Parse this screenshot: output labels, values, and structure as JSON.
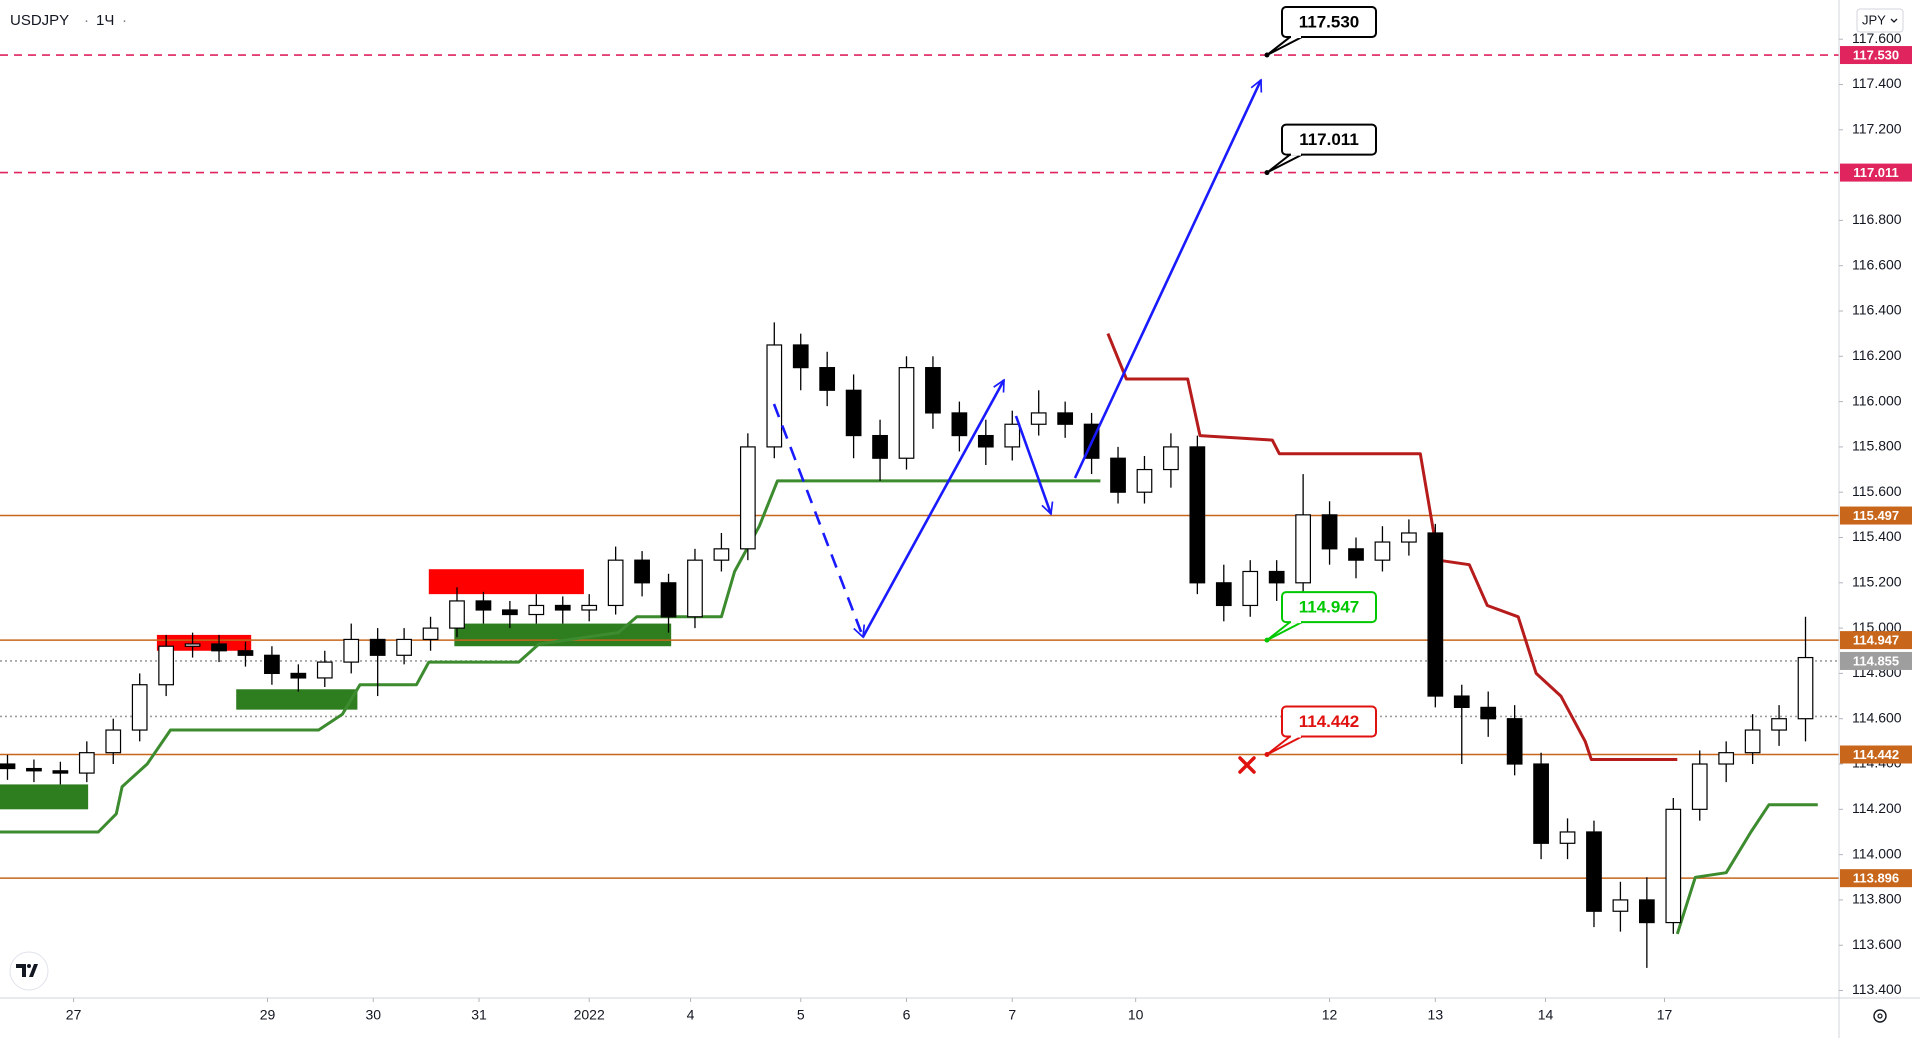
{
  "header": {
    "symbol": "USDJPY",
    "interval": "1Ч",
    "currency": "JPY"
  },
  "chart_data": {
    "type": "candlestick",
    "up_color": "#ffffff",
    "down_color": "#000000",
    "outline_color": "#000000",
    "x": [
      -15,
      -9,
      -3,
      3,
      9,
      15,
      21,
      27,
      33,
      39,
      45,
      51,
      57,
      63,
      69,
      75,
      81,
      87,
      93,
      99,
      105,
      111,
      117,
      123,
      129,
      135,
      141,
      147,
      153,
      159,
      165,
      171,
      177,
      183,
      189,
      195,
      201,
      207,
      213,
      219,
      225,
      231,
      237,
      243,
      249,
      255,
      261,
      267,
      273,
      279,
      285,
      291,
      297,
      303,
      309,
      315,
      321,
      327,
      333,
      339,
      345,
      351,
      357,
      363,
      369,
      375,
      381,
      387,
      393
    ],
    "open": [
      114.4,
      114.38,
      114.37,
      114.36,
      114.45,
      114.55,
      114.75,
      114.92,
      114.93,
      114.9,
      114.88,
      114.8,
      114.78,
      114.85,
      114.95,
      114.88,
      114.95,
      115.0,
      115.12,
      115.08,
      115.06,
      115.1,
      115.08,
      115.1,
      115.3,
      115.2,
      115.05,
      115.3,
      115.35,
      115.8,
      116.25,
      116.15,
      116.05,
      115.85,
      115.75,
      116.15,
      115.95,
      115.85,
      115.8,
      115.9,
      115.95,
      115.9,
      115.75,
      115.6,
      115.7,
      115.8,
      115.2,
      115.1,
      115.25,
      115.2,
      115.5,
      115.35,
      115.3,
      115.38,
      115.42,
      114.7,
      114.65,
      114.6,
      114.4,
      114.05,
      114.1,
      113.75,
      113.8,
      113.7,
      114.2,
      114.4,
      114.45,
      114.55,
      114.6
    ],
    "high": [
      114.44,
      114.42,
      114.41,
      114.5,
      114.6,
      114.8,
      114.97,
      114.98,
      114.97,
      114.94,
      114.92,
      114.84,
      114.9,
      115.02,
      115.0,
      115.0,
      115.05,
      115.18,
      115.16,
      115.12,
      115.15,
      115.14,
      115.15,
      115.36,
      115.34,
      115.24,
      115.35,
      115.42,
      115.86,
      116.35,
      116.3,
      116.22,
      116.12,
      115.92,
      116.2,
      116.2,
      116.0,
      115.92,
      115.96,
      116.05,
      116.0,
      115.95,
      115.8,
      115.76,
      115.86,
      115.85,
      115.28,
      115.3,
      115.3,
      115.68,
      115.56,
      115.4,
      115.45,
      115.48,
      115.46,
      114.75,
      114.72,
      114.66,
      114.45,
      114.16,
      114.15,
      113.88,
      113.9,
      114.25,
      114.46,
      114.5,
      114.62,
      114.66,
      115.05
    ],
    "low": [
      114.33,
      114.32,
      114.31,
      114.32,
      114.4,
      114.5,
      114.7,
      114.87,
      114.85,
      114.83,
      114.75,
      114.72,
      114.74,
      114.8,
      114.7,
      114.84,
      114.9,
      114.96,
      115.02,
      115.0,
      115.02,
      115.02,
      115.03,
      115.06,
      115.14,
      114.98,
      115.0,
      115.25,
      115.3,
      115.75,
      116.05,
      115.98,
      115.75,
      115.65,
      115.7,
      115.88,
      115.78,
      115.72,
      115.74,
      115.85,
      115.84,
      115.68,
      115.55,
      115.55,
      115.62,
      115.15,
      115.03,
      115.05,
      115.12,
      115.15,
      115.28,
      115.22,
      115.25,
      115.32,
      114.65,
      114.4,
      114.52,
      114.35,
      113.98,
      113.98,
      113.68,
      113.66,
      113.5,
      113.65,
      114.15,
      114.32,
      114.4,
      114.48,
      114.5
    ],
    "close": [
      114.38,
      114.37,
      114.36,
      114.45,
      114.55,
      114.75,
      114.92,
      114.93,
      114.9,
      114.88,
      114.8,
      114.78,
      114.85,
      114.95,
      114.88,
      114.95,
      115.0,
      115.12,
      115.08,
      115.06,
      115.1,
      115.08,
      115.1,
      115.3,
      115.2,
      115.05,
      115.3,
      115.35,
      115.8,
      116.25,
      116.15,
      116.05,
      115.85,
      115.75,
      116.15,
      115.95,
      115.85,
      115.8,
      115.9,
      115.95,
      115.9,
      115.75,
      115.6,
      115.7,
      115.8,
      115.2,
      115.1,
      115.25,
      115.2,
      115.5,
      115.35,
      115.3,
      115.38,
      115.42,
      114.7,
      114.65,
      114.6,
      114.4,
      114.05,
      114.1,
      113.75,
      113.8,
      113.7,
      114.2,
      114.4,
      114.45,
      114.55,
      114.6,
      114.87
    ],
    "xlim": [
      -16.7,
      400.6
    ],
    "xticks": [
      {
        "value": 0,
        "label": "27"
      },
      {
        "value": 44,
        "label": "29"
      },
      {
        "value": 68,
        "label": "30"
      },
      {
        "value": 92,
        "label": "31"
      },
      {
        "value": 117,
        "label": "2022"
      },
      {
        "value": 140,
        "label": "4"
      },
      {
        "value": 165,
        "label": "5"
      },
      {
        "value": 189,
        "label": "6"
      },
      {
        "value": 213,
        "label": "7"
      },
      {
        "value": 241,
        "label": "10"
      },
      {
        "value": 285,
        "label": "12"
      },
      {
        "value": 309,
        "label": "13"
      },
      {
        "value": 334,
        "label": "14"
      },
      {
        "value": 361,
        "label": "17"
      }
    ],
    "ylim": [
      113.367,
      117.773
    ],
    "yticks": [
      {
        "value": 113.4,
        "label": "113.400"
      },
      {
        "value": 113.6,
        "label": "113.600"
      },
      {
        "value": 113.8,
        "label": "113.800"
      },
      {
        "value": 114.0,
        "label": "114.000"
      },
      {
        "value": 114.2,
        "label": "114.200"
      },
      {
        "value": 114.4,
        "label": "114.400"
      },
      {
        "value": 114.6,
        "label": "114.600"
      },
      {
        "value": 114.8,
        "label": "114.800"
      },
      {
        "value": 115.0,
        "label": "115.000"
      },
      {
        "value": 115.2,
        "label": "115.200"
      },
      {
        "value": 115.4,
        "label": "115.400"
      },
      {
        "value": 115.6,
        "label": "115.600"
      },
      {
        "value": 115.8,
        "label": "115.800"
      },
      {
        "value": 116.0,
        "label": "116.000"
      },
      {
        "value": 116.2,
        "label": "116.200"
      },
      {
        "value": 116.4,
        "label": "116.400"
      },
      {
        "value": 116.6,
        "label": "116.600"
      },
      {
        "value": 116.8,
        "label": "116.800"
      },
      {
        "value": 117.2,
        "label": "117.200"
      },
      {
        "value": 117.4,
        "label": "117.400"
      },
      {
        "value": 117.6,
        "label": "117.600"
      }
    ],
    "grid": false,
    "zones": [
      {
        "x": [
          18.9,
          40.3
        ],
        "y": [
          114.9,
          114.97
        ],
        "color": "#ff0000"
      },
      {
        "x": [
          80.6,
          115.8
        ],
        "y": [
          115.15,
          115.26
        ],
        "color": "#ff0000"
      },
      {
        "x": [
          -16.7,
          3.3
        ],
        "y": [
          114.2,
          114.31
        ],
        "color": "#2e7d1f"
      },
      {
        "x": [
          36.9,
          64.4
        ],
        "y": [
          114.64,
          114.73
        ],
        "color": "#2e7d1f"
      },
      {
        "x": [
          86.4,
          135.6
        ],
        "y": [
          114.92,
          115.02
        ],
        "color": "#2e7d1f"
      }
    ],
    "indicator_lines": [
      {
        "color": "#3d8b2f",
        "x": [
          -16.7,
          5.6,
          9.7,
          11,
          16.7,
          22,
          55.6,
          61,
          65,
          77.8,
          80.6,
          101,
          105.6,
          123.6,
          127.8,
          147,
          150,
          155.6,
          159.7,
          233
        ],
        "values": [
          114.1,
          114.1,
          114.18,
          114.3,
          114.4,
          114.55,
          114.55,
          114.62,
          114.75,
          114.75,
          114.85,
          114.85,
          114.93,
          114.98,
          115.05,
          115.05,
          115.25,
          115.45,
          115.65,
          115.65
        ]
      },
      {
        "color": "#b71c1c",
        "x": [
          234.7,
          238.9,
          252.8,
          255.6,
          272,
          273.6,
          305.6,
          309.7,
          316.7,
          320.8,
          327.8,
          331.9,
          337.5,
          343,
          344.4,
          363.9
        ],
        "values": [
          116.3,
          116.1,
          116.1,
          115.85,
          115.83,
          115.77,
          115.77,
          115.3,
          115.28,
          115.1,
          115.05,
          114.8,
          114.7,
          114.5,
          114.42,
          114.42
        ]
      },
      {
        "color": "#3d8b2f",
        "x": [
          363.9,
          368,
          375,
          380.6,
          384.7,
          395.8
        ],
        "values": [
          113.65,
          113.9,
          113.92,
          114.1,
          114.22,
          114.22
        ]
      }
    ],
    "levels": [
      {
        "value": 117.53,
        "label": "117.530",
        "style": "dashed",
        "color": "#e0245e"
      },
      {
        "value": 117.011,
        "label": "117.011",
        "style": "dashed",
        "color": "#e0245e"
      },
      {
        "value": 115.497,
        "label": "115.497",
        "style": "solid",
        "color": "#c8661b"
      },
      {
        "value": 114.947,
        "label": "114.947",
        "style": "solid",
        "color": "#c8661b"
      },
      {
        "value": 114.855,
        "label": "114.855",
        "style": "dotted",
        "color": "#9e9e9e"
      },
      {
        "value": 114.61,
        "style": "dotted",
        "color": "#9e9e9e"
      },
      {
        "value": 114.442,
        "label": "114.442",
        "style": "solid",
        "color": "#c8661b"
      },
      {
        "value": 113.896,
        "label": "113.896",
        "style": "solid",
        "color": "#c8661b"
      }
    ],
    "callouts": [
      {
        "value": 117.53,
        "label": "117.530",
        "color": "#000000"
      },
      {
        "value": 117.011,
        "label": "117.011",
        "color": "#000000"
      },
      {
        "value": 114.947,
        "label": "114.947",
        "color": "#00c800"
      },
      {
        "value": 114.442,
        "label": "114.442",
        "color": "#e0120f"
      }
    ]
  }
}
